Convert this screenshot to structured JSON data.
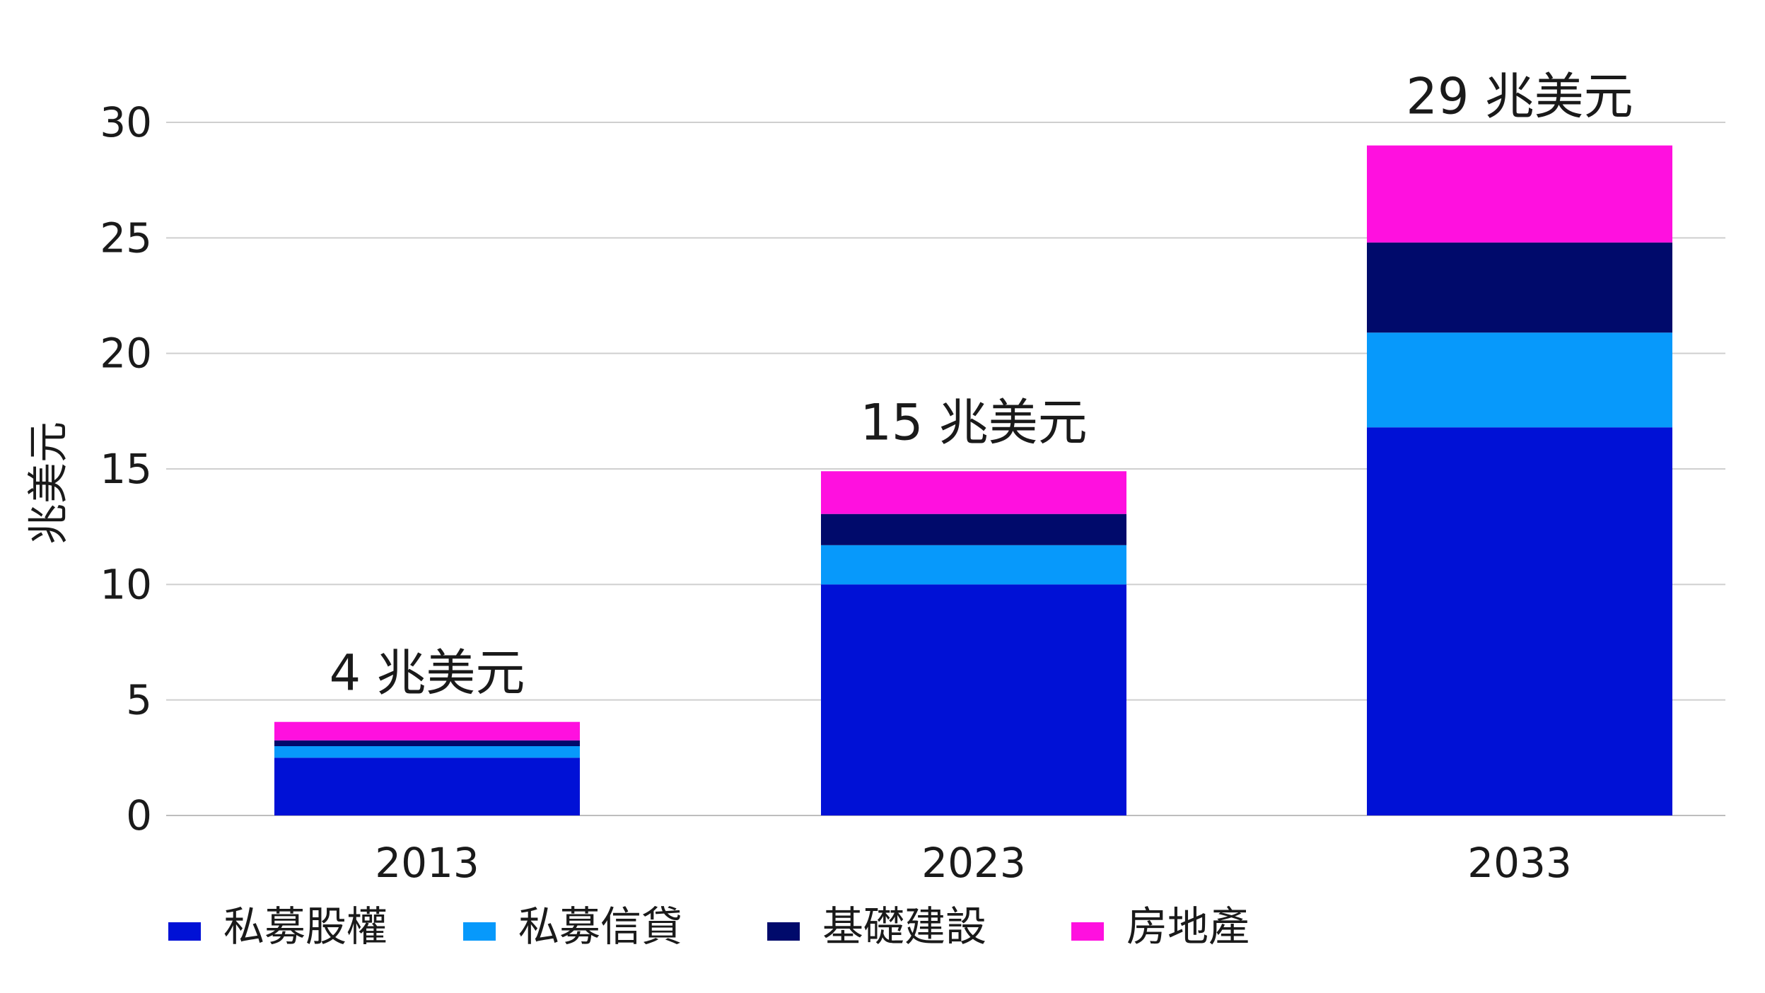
{
  "chart_data": {
    "type": "bar",
    "stacked": true,
    "categories": [
      "2013",
      "2023",
      "2033"
    ],
    "ylabel": "兆美元",
    "ylim": [
      0,
      30
    ],
    "yticks": [
      0,
      5,
      10,
      15,
      20,
      25,
      30
    ],
    "grid": true,
    "legend_position": "bottom",
    "totals": [
      "4 兆美元",
      "15 兆美元",
      "29 兆美元"
    ],
    "series": [
      {
        "name": "私募股權",
        "color": "#0011d6",
        "values": [
          2.5,
          10.0,
          16.8
        ]
      },
      {
        "name": "私募信貸",
        "color": "#0799fb",
        "values": [
          0.5,
          1.7,
          4.1
        ]
      },
      {
        "name": "基礎建設",
        "color": "#000a6b",
        "values": [
          0.25,
          1.35,
          3.9
        ]
      },
      {
        "name": "房地產",
        "color": "#ff10df",
        "values": [
          0.8,
          1.85,
          4.2
        ]
      }
    ]
  }
}
